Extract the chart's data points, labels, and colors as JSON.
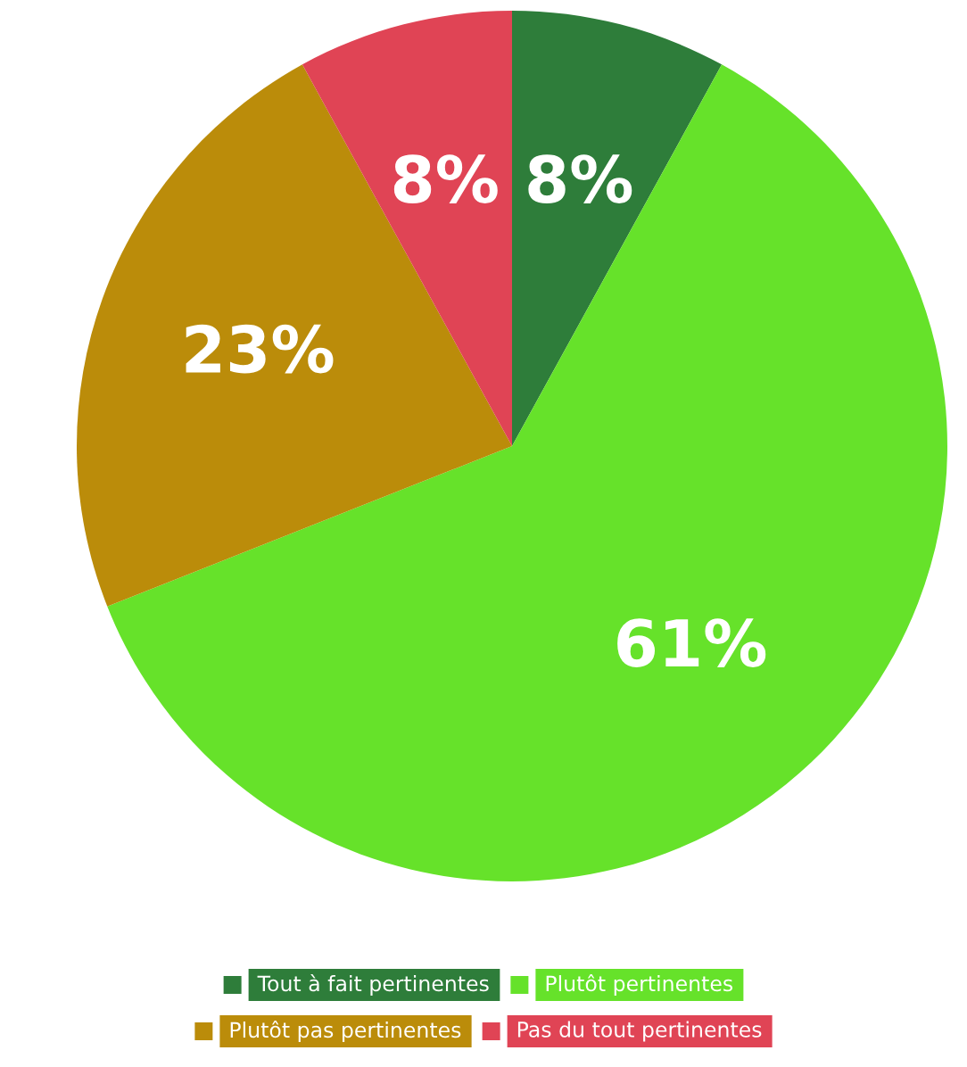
{
  "chart_data": {
    "type": "pie",
    "categories": [
      "Tout à fait pertinentes",
      "Plutôt pertinentes",
      "Plutôt pas pertinentes",
      "Pas du tout pertinentes"
    ],
    "values": [
      8,
      61,
      23,
      8
    ],
    "colors": [
      "#2e7d3a",
      "#66e22a",
      "#bb8c0a",
      "#e04455"
    ],
    "value_labels": [
      "8%",
      "61%",
      "23%",
      "8%"
    ],
    "legend": "bottom"
  }
}
